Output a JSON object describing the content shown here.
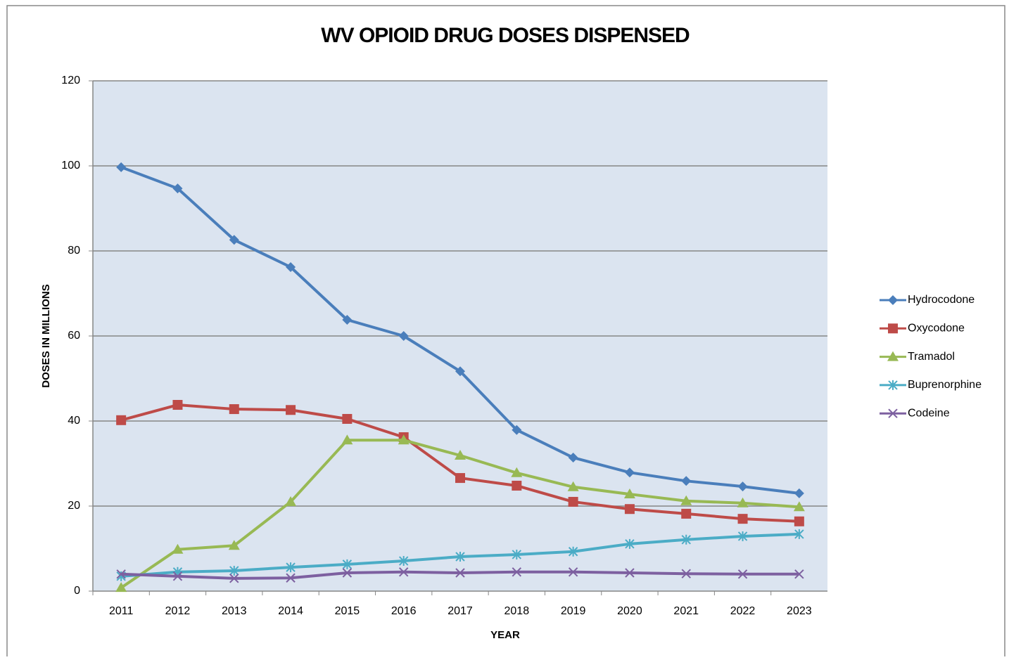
{
  "chart_data": {
    "type": "line",
    "title": "WV OPIOID DRUG DOSES DISPENSED",
    "x_label": "YEAR",
    "y_label": "DOSES IN MILLIONS",
    "categories": [
      "2011",
      "2012",
      "2013",
      "2014",
      "2015",
      "2016",
      "2017",
      "2018",
      "2019",
      "2020",
      "2021",
      "2022",
      "2023"
    ],
    "series": [
      {
        "name": "Hydrocodone",
        "color": "#4a7ebb",
        "marker": "diamond",
        "values": [
          99.7,
          94.7,
          82.6,
          76.2,
          63.8,
          60,
          51.7,
          37.9,
          31.4,
          27.9,
          25.9,
          24.6,
          23.0
        ]
      },
      {
        "name": "Oxycodone",
        "color": "#be4b48",
        "marker": "square",
        "values": [
          40.2,
          43.8,
          42.8,
          42.6,
          40.5,
          36.2,
          26.6,
          24.8,
          21.0,
          19.3,
          18.2,
          17.0,
          16.4
        ]
      },
      {
        "name": "Tramadol",
        "color": "#98b954",
        "marker": "triangle",
        "values": [
          0.8,
          9.8,
          10.7,
          21.0,
          35.5,
          35.5,
          31.9,
          27.8,
          24.5,
          22.8,
          21.2,
          20.7,
          19.8
        ]
      },
      {
        "name": "Buprenorphine",
        "color": "#4bacc6",
        "marker": "asterisk",
        "values": [
          3.5,
          4.5,
          4.8,
          5.6,
          6.3,
          7.1,
          8.1,
          8.6,
          9.3,
          11.1,
          12.1,
          12.9,
          13.4
        ]
      },
      {
        "name": "Codeine",
        "color": "#7d60a0",
        "marker": "x",
        "values": [
          4.0,
          3.5,
          3.0,
          3.1,
          4.3,
          4.5,
          4.3,
          4.5,
          4.5,
          4.3,
          4.1,
          4.0,
          4.0
        ]
      }
    ],
    "ylim": [
      0,
      120
    ],
    "yticks": [
      0,
      20,
      40,
      60,
      80,
      100,
      120
    ],
    "grid": true,
    "legend": "right"
  }
}
